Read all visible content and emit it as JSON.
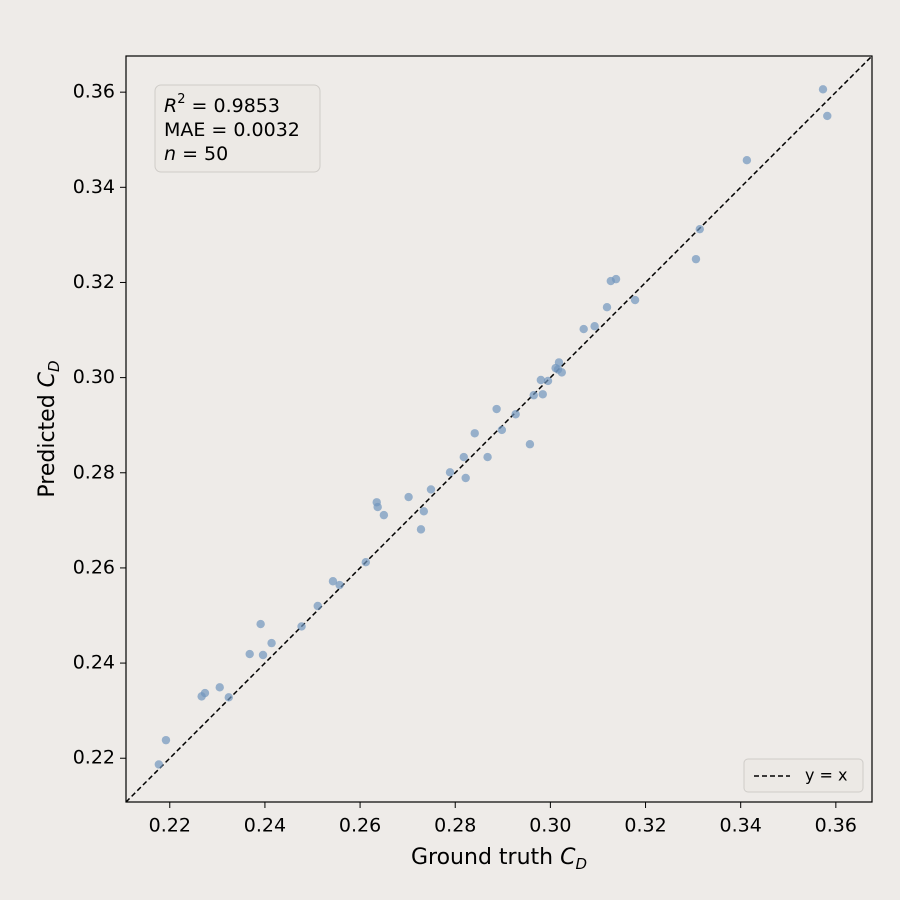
{
  "chart_data": {
    "type": "scatter",
    "xlabel": {
      "text": "Ground truth ",
      "symbol": "C",
      "subscript": "D"
    },
    "ylabel": {
      "text": "Predicted ",
      "symbol": "C",
      "subscript": "D"
    },
    "annotation": [
      {
        "symbol": "R",
        "superscript": "2",
        "text": " = 0.9853"
      },
      {
        "text": "MAE = 0.0032"
      },
      {
        "symbol": "n",
        "text": " = 50"
      }
    ],
    "reference_line": {
      "label": "y = x",
      "color": "#000000"
    },
    "legend_loc": "lower right",
    "xlim": [
      0.2108,
      0.3676
    ],
    "ylim": [
      0.2108,
      0.3676
    ],
    "xticks": [
      0.22,
      0.24,
      0.26,
      0.28,
      {
        "value": 0.3,
        "label": "0.30"
      },
      0.32,
      0.34,
      0.36
    ],
    "yticks": [
      0.22,
      0.24,
      0.26,
      0.28,
      {
        "value": 0.3,
        "label": "0.30"
      },
      0.32,
      0.34,
      0.36
    ],
    "color": "#7096bd",
    "x": [
      0.2177,
      0.2192,
      0.2267,
      0.2274,
      0.2305,
      0.2324,
      0.2368,
      0.2391,
      0.2396,
      0.2414,
      0.2477,
      0.2511,
      0.2543,
      0.2557,
      0.2612,
      0.2635,
      0.2637,
      0.265,
      0.2702,
      0.2728,
      0.2734,
      0.2749,
      0.2789,
      0.2818,
      0.2822,
      0.2841,
      0.2868,
      0.2887,
      0.2898,
      0.2927,
      0.2957,
      0.2965,
      0.298,
      0.2984,
      0.2995,
      0.3011,
      0.3016,
      0.3018,
      0.3024,
      0.307,
      0.3093,
      0.3119,
      0.3127,
      0.3138,
      0.3178,
      0.3306,
      0.3314,
      0.3413,
      0.3573,
      0.3582
    ],
    "values": [
      0.2187,
      0.2238,
      0.233,
      0.2337,
      0.2349,
      0.2328,
      0.2419,
      0.2482,
      0.2417,
      0.2442,
      0.2477,
      0.252,
      0.2572,
      0.2564,
      0.2612,
      0.2738,
      0.2728,
      0.2711,
      0.2749,
      0.2681,
      0.2719,
      0.2765,
      0.2801,
      0.2833,
      0.2789,
      0.2883,
      0.2833,
      0.2934,
      0.289,
      0.2923,
      0.286,
      0.2963,
      0.2995,
      0.2965,
      0.2993,
      0.302,
      0.3017,
      0.3032,
      0.3011,
      0.3102,
      0.3108,
      0.3148,
      0.3203,
      0.3207,
      0.3163,
      0.3249,
      0.3312,
      0.3457,
      0.3606,
      0.355
    ]
  }
}
